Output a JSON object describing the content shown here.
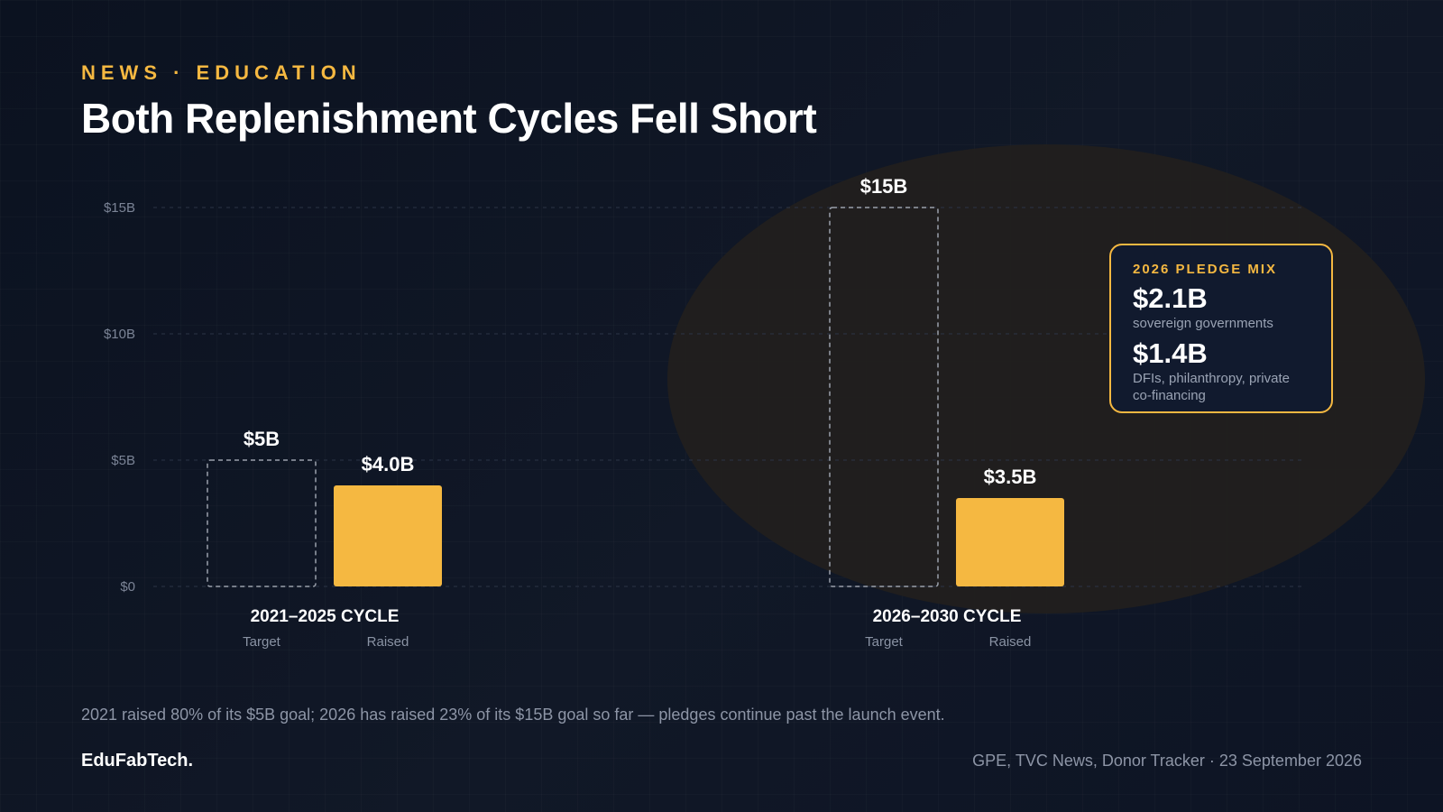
{
  "header": {
    "kicker": "NEWS · EDUCATION",
    "title": "Both Replenishment Cycles Fell Short"
  },
  "colors": {
    "accent": "#f5b841",
    "background": "#0d1424",
    "highlight": "#221f1d",
    "target_stroke": "#9aa0ab"
  },
  "chart_data": {
    "type": "bar",
    "unit": "$B",
    "ylim": [
      0,
      15
    ],
    "yticks": [
      {
        "value": 0,
        "label": "$0"
      },
      {
        "value": 5,
        "label": "$5B"
      },
      {
        "value": 10,
        "label": "$10B"
      },
      {
        "value": 15,
        "label": "$15B"
      }
    ],
    "grid": true,
    "groups": [
      {
        "label": "2021–2025 CYCLE",
        "bars": [
          {
            "sub_label": "Target",
            "value": 5,
            "value_label": "$5B",
            "style": "dashed-outline"
          },
          {
            "sub_label": "Raised",
            "value": 4.0,
            "value_label": "$4.0B",
            "style": "filled"
          }
        ]
      },
      {
        "label": "2026–2030 CYCLE",
        "highlighted": true,
        "bars": [
          {
            "sub_label": "Target",
            "value": 15,
            "value_label": "$15B",
            "style": "dashed-outline"
          },
          {
            "sub_label": "Raised",
            "value": 3.5,
            "value_label": "$3.5B",
            "style": "filled"
          }
        ]
      }
    ]
  },
  "pledge_mix": {
    "heading": "2026 PLEDGE MIX",
    "items": [
      {
        "value": "$2.1B",
        "desc": "sovereign governments"
      },
      {
        "value": "$1.4B",
        "desc": "DFIs, philanthropy, private co-financing"
      }
    ]
  },
  "footer": {
    "note": "2021 raised 80% of its $5B goal; 2026 has raised 23% of its $15B goal so far — pledges continue past the launch event.",
    "brand": "EduFabTech.",
    "source": "GPE, TVC News, Donor Tracker · 23 September 2026"
  }
}
